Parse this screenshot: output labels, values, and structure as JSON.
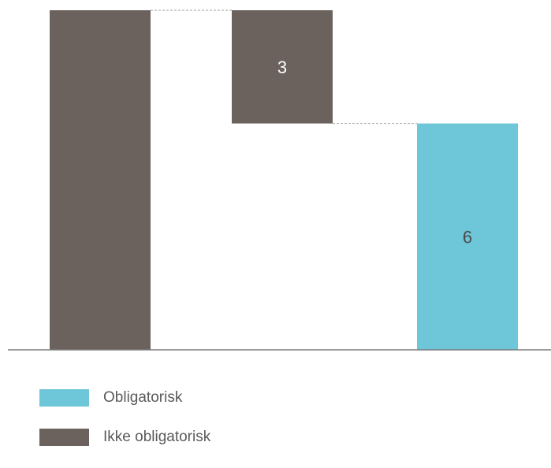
{
  "chart_data": {
    "type": "waterfall",
    "categories": [
      "",
      "",
      ""
    ],
    "bars": [
      {
        "kind": "total",
        "value": 9,
        "series": "Ikke obligatorisk",
        "label": ""
      },
      {
        "kind": "decrease",
        "value": 3,
        "series": "Ikke obligatorisk",
        "label": "3"
      },
      {
        "kind": "total",
        "value": 6,
        "series": "Obligatorisk",
        "label": "6"
      }
    ],
    "ylim": [
      0,
      9
    ],
    "legend": [
      {
        "name": "Obligatorisk",
        "color": "#6ec6d9"
      },
      {
        "name": "Ikke obligatorisk",
        "color": "#6b625d"
      }
    ],
    "colors": {
      "Obligatorisk": "#6ec6d9",
      "Ikke obligatorisk": "#6b625d",
      "axis": "#7a7a7a",
      "connector": "#a0a0a0"
    }
  }
}
